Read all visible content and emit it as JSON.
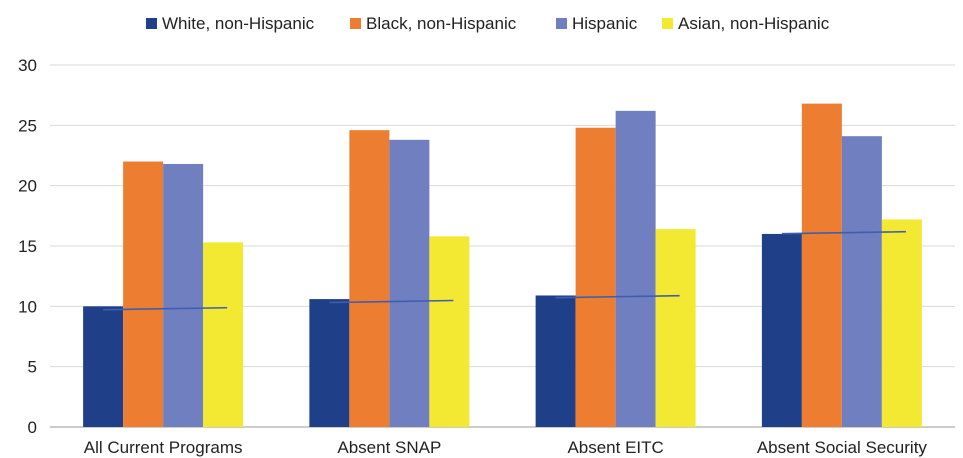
{
  "chart_data": {
    "type": "bar",
    "categories": [
      "All Current Programs",
      "Absent SNAP",
      "Absent EITC",
      "Absent Social Security"
    ],
    "series": [
      {
        "name": "White, non-Hispanic",
        "color": "#1f4088",
        "values": [
          10.0,
          10.6,
          10.9,
          16.0
        ]
      },
      {
        "name": "Black, non-Hispanic",
        "color": "#ed7d31",
        "values": [
          22.0,
          24.6,
          24.8,
          26.8
        ]
      },
      {
        "name": "Hispanic",
        "color": "#6f7fc0",
        "values": [
          21.8,
          23.8,
          26.2,
          24.1
        ]
      },
      {
        "name": "Asian, non-Hispanic",
        "color": "#f4e932",
        "values": [
          15.3,
          15.8,
          16.4,
          17.2
        ]
      }
    ],
    "overlay_line": {
      "color": "#3e5fb0",
      "values": [
        9.8,
        10.4,
        10.8,
        16.1
      ]
    },
    "ylim": [
      0,
      30
    ],
    "yticks": [
      "0",
      "5",
      "10",
      "15",
      "20",
      "25",
      "30"
    ],
    "grid": true,
    "legend_position": "top",
    "title": "",
    "xlabel": "",
    "ylabel": ""
  }
}
